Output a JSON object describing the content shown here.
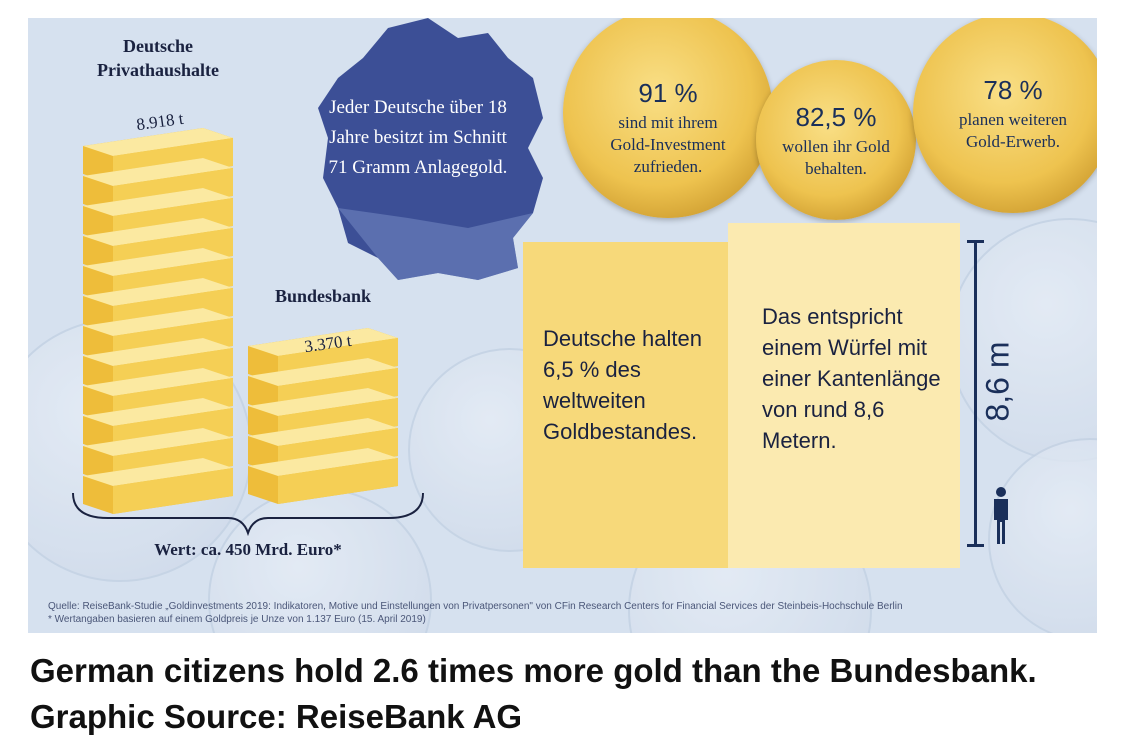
{
  "infographic": {
    "privathaushalte_label": "Deutsche\nPrivathaushalte",
    "privathaushalte_amount": "8.918 t",
    "bundesbank_label": "Bundesbank",
    "bundesbank_amount": "3.370 t",
    "wert_label": "Wert: ca. 450 Mrd. Euro*",
    "map_text": "Jeder Deutsche über 18 Jahre besitzt im Schnitt 71 Gramm Anlagegold.",
    "coins": [
      {
        "percent": "91 %",
        "text": "sind mit ihrem Gold-Investment zufrieden."
      },
      {
        "percent": "82,5 %",
        "text": "wollen ihr Gold behalten."
      },
      {
        "percent": "78 %",
        "text": "planen weiteren Gold-Erwerb."
      }
    ],
    "cube_front_text": "Deutsche halten 6,5 % des weltweiten Goldbestandes.",
    "cube_side_text": "Das entspricht einem Würfel mit einer Kantenlänge von rund 8,6 Metern.",
    "height_label": "8,6 m",
    "source_line1": "Quelle: ReiseBank-Studie „Goldinvestments 2019: Indikatoren, Motive und Einstellungen von Privatpersonen\" von CFin Research Centers for Financial Services der Steinbeis-Hochschule Berlin",
    "source_line2": "* Wertangaben basieren auf einem Goldpreis je Unze von 1.137 Euro (15. April 2019)",
    "colors": {
      "gold": "#f3cb4c",
      "navy": "#1a2f5a",
      "map": "#2b3f8c",
      "background": "#d6e1ef"
    }
  },
  "caption": "German citizens hold 2.6 times more gold than the Bundesbank. Graphic Source: ReiseBank AG"
}
